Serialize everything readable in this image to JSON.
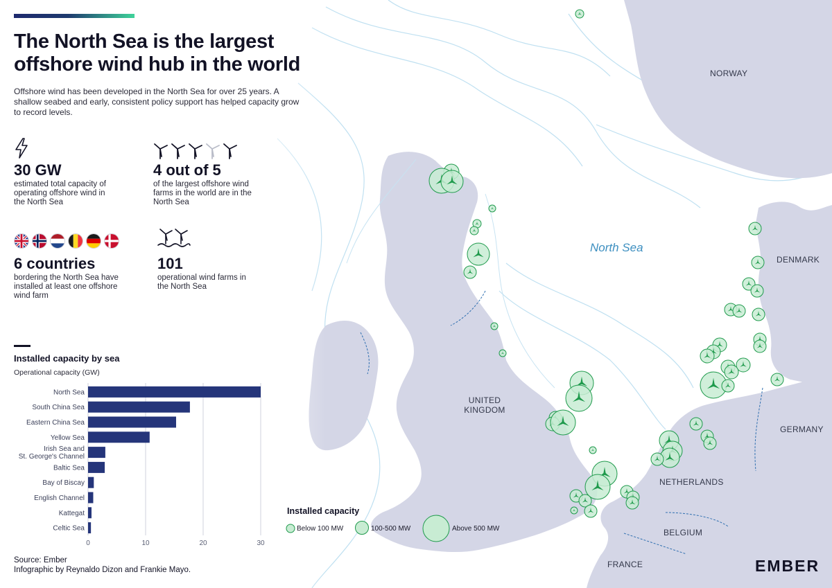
{
  "title": "The North Sea is the largest offshore wind hub in the world",
  "subtitle": "Offshore wind has been developed in the North Sea for over 25 years. A shallow seabed and early, consistent policy support has helped capacity grow to record levels.",
  "stats": [
    {
      "value": "30 GW",
      "desc": "estimated total capacity of operating offshore wind in the North Sea",
      "icon": "lightning-icon"
    },
    {
      "value": "4 out of 5",
      "desc": "of the largest offshore wind farms in the world are in the North Sea",
      "icon": "wind-turbines-icon"
    },
    {
      "value": "6 countries",
      "desc": "bordering the North Sea have installed at least one offshore wind farm",
      "icon": "country-flags"
    },
    {
      "value": "101",
      "desc": "operational wind farms in the North Sea",
      "icon": "offshore-turbines-icon"
    }
  ],
  "flags": [
    "uk-flag",
    "norway-flag",
    "netherlands-flag",
    "belgium-flag",
    "germany-flag",
    "denmark-flag"
  ],
  "chart_title": "Installed capacity by sea",
  "chart_subtitle": "Operational capacity (GW)",
  "chart_data": {
    "type": "bar",
    "orientation": "horizontal",
    "title": "Installed capacity by sea",
    "subtitle": "Operational capacity (GW)",
    "categories": [
      "North Sea",
      "South China Sea",
      "Eastern China Sea",
      "Yellow Sea",
      "Irish Sea and St. George's Channel",
      "Baltic Sea",
      "Bay of Biscay",
      "English Channel",
      "Kattegat",
      "Celtic Sea"
    ],
    "category_lines": [
      [
        "North Sea"
      ],
      [
        "South China Sea"
      ],
      [
        "Eastern China Sea"
      ],
      [
        "Yellow Sea"
      ],
      [
        "Irish Sea and",
        "St. George's Channel"
      ],
      [
        "Baltic Sea"
      ],
      [
        "Bay of Biscay"
      ],
      [
        "English Channel"
      ],
      [
        "Kattegat"
      ],
      [
        "Celtic Sea"
      ]
    ],
    "values": [
      30,
      17.7,
      15.3,
      10.7,
      3.0,
      2.9,
      1.0,
      0.9,
      0.6,
      0.5
    ],
    "xlim": [
      0,
      30
    ],
    "xticks": [
      0,
      10,
      20,
      30
    ],
    "grid": true,
    "bar_color": "#25357a"
  },
  "source": "Source: Ember",
  "credit": "Infographic by Reynaldo Dizon and Frankie Mayo.",
  "map": {
    "sea_label": "North Sea",
    "countries": [
      "NORWAY",
      "DENMARK",
      "UNITED KINGDOM",
      "GERMANY",
      "NETHERLANDS",
      "BELGIUM",
      "FRANCE"
    ],
    "colors": {
      "land": "#d4d6e6",
      "sea": "#ffffff",
      "farm_fill": "#c8ecd3",
      "farm_stroke": "#1f9a4c",
      "turbine": "#1f9a4c",
      "border": "#2f6fb0",
      "contour": "#b9dcef"
    }
  },
  "legend": {
    "title": "Installed capacity",
    "items": [
      "Below 100 MW",
      "100-500 MW",
      "Above 500 MW"
    ]
  },
  "logo": "EMBER"
}
